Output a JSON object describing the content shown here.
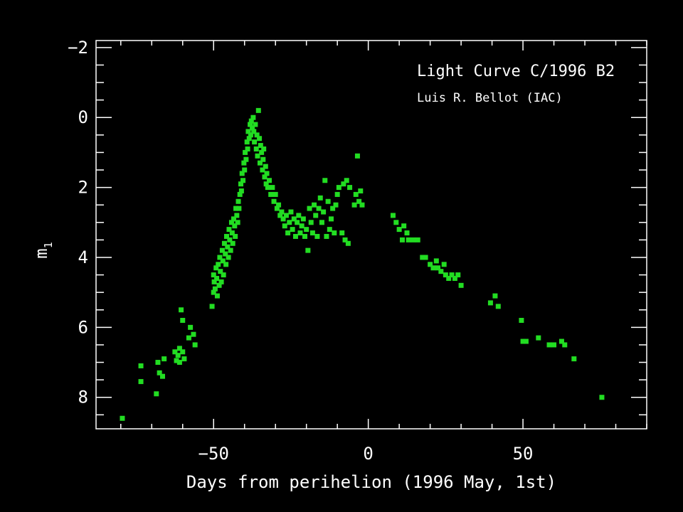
{
  "chart_data": {
    "type": "scatter",
    "title": "Light Curve C/1996 B2",
    "subtitle": "Luis R. Bellot (IAC)",
    "xlabel": "Days from perihelion (1996 May, 1st)",
    "ylabel": "m",
    "ylabel_subscript": "1",
    "xlim": [
      -88,
      90
    ],
    "ylim": [
      -2.2,
      8.9
    ],
    "y_inverted": true,
    "x_ticks": [
      -50,
      0,
      50
    ],
    "x_tick_labels": [
      "−50",
      "0",
      "50"
    ],
    "y_ticks": [
      -2,
      0,
      2,
      4,
      6,
      8
    ],
    "y_tick_labels": [
      "−2",
      "0",
      "2",
      "4",
      "6",
      "8"
    ],
    "x_minor_step": 10,
    "y_minor_step": 0.5,
    "grid": false,
    "background_color": "#000000",
    "axis_color": "#ffffff",
    "point_color": "#22dd22",
    "series": [
      {
        "points": [
          [
            -79.5,
            8.6
          ],
          [
            -73.5,
            7.1
          ],
          [
            -73.5,
            7.55
          ],
          [
            -68.5,
            7.9
          ],
          [
            -68.0,
            7.0
          ],
          [
            -67.5,
            7.3
          ],
          [
            -66.5,
            7.4
          ],
          [
            -66.0,
            6.9
          ],
          [
            -62.5,
            6.7
          ],
          [
            -62.0,
            6.95
          ],
          [
            -61.5,
            6.8
          ],
          [
            -61.0,
            7.0
          ],
          [
            -61.0,
            6.6
          ],
          [
            -60.5,
            5.5
          ],
          [
            -60.0,
            6.7
          ],
          [
            -60.0,
            5.8
          ],
          [
            -59.5,
            6.9
          ],
          [
            -58.0,
            6.3
          ],
          [
            -57.5,
            6.0
          ],
          [
            -56.5,
            6.2
          ],
          [
            -56.0,
            6.5
          ],
          [
            -50.5,
            5.4
          ],
          [
            -50.0,
            5.0
          ],
          [
            -50.0,
            4.5
          ],
          [
            -49.8,
            4.7
          ],
          [
            -49.5,
            4.9
          ],
          [
            -49.2,
            4.3
          ],
          [
            -49.0,
            4.6
          ],
          [
            -48.8,
            5.1
          ],
          [
            -48.5,
            4.2
          ],
          [
            -48.2,
            4.8
          ],
          [
            -48.0,
            4.0
          ],
          [
            -47.8,
            4.4
          ],
          [
            -47.5,
            4.7
          ],
          [
            -47.2,
            3.8
          ],
          [
            -47.0,
            4.1
          ],
          [
            -46.8,
            4.5
          ],
          [
            -46.5,
            3.6
          ],
          [
            -46.2,
            3.9
          ],
          [
            -46.0,
            4.2
          ],
          [
            -45.8,
            3.4
          ],
          [
            -45.5,
            3.7
          ],
          [
            -45.2,
            4.0
          ],
          [
            -45.0,
            3.2
          ],
          [
            -44.8,
            3.5
          ],
          [
            -44.5,
            3.8
          ],
          [
            -44.2,
            3.0
          ],
          [
            -44.0,
            3.3
          ],
          [
            -43.8,
            3.6
          ],
          [
            -43.5,
            2.9
          ],
          [
            -43.2,
            3.1
          ],
          [
            -43.0,
            3.4
          ],
          [
            -42.8,
            2.6
          ],
          [
            -42.5,
            2.8
          ],
          [
            -42.2,
            3.0
          ],
          [
            -42.0,
            2.4
          ],
          [
            -41.8,
            2.6
          ],
          [
            -41.5,
            2.2
          ],
          [
            -41.2,
            1.9
          ],
          [
            -41.0,
            2.1
          ],
          [
            -40.8,
            1.6
          ],
          [
            -40.5,
            1.8
          ],
          [
            -40.2,
            1.3
          ],
          [
            -40.0,
            1.5
          ],
          [
            -39.8,
            1.0
          ],
          [
            -39.5,
            1.2
          ],
          [
            -39.2,
            0.7
          ],
          [
            -39.0,
            0.9
          ],
          [
            -38.8,
            0.4
          ],
          [
            -38.5,
            0.6
          ],
          [
            -38.2,
            0.2
          ],
          [
            -38.0,
            0.5
          ],
          [
            -37.8,
            0.1
          ],
          [
            -37.5,
            0.3
          ],
          [
            -37.2,
            0.0
          ],
          [
            -37.0,
            0.4
          ],
          [
            -36.8,
            0.7
          ],
          [
            -36.5,
            0.2
          ],
          [
            -36.2,
            0.9
          ],
          [
            -36.0,
            0.5
          ],
          [
            -35.8,
            1.1
          ],
          [
            -35.5,
            -0.2
          ],
          [
            -35.2,
            0.6
          ],
          [
            -35.0,
            1.3
          ],
          [
            -34.8,
            0.8
          ],
          [
            -34.5,
            1.0
          ],
          [
            -34.2,
            1.5
          ],
          [
            -34.0,
            1.2
          ],
          [
            -33.8,
            0.9
          ],
          [
            -33.5,
            1.7
          ],
          [
            -33.2,
            1.4
          ],
          [
            -33.0,
            1.9
          ],
          [
            -32.8,
            1.6
          ],
          [
            -32.5,
            2.0
          ],
          [
            -32.0,
            1.8
          ],
          [
            -31.5,
            2.2
          ],
          [
            -31.0,
            2.0
          ],
          [
            -30.5,
            2.4
          ],
          [
            -30.0,
            2.2
          ],
          [
            -29.5,
            2.6
          ],
          [
            -29.0,
            2.5
          ],
          [
            -28.5,
            2.8
          ],
          [
            -28.0,
            2.7
          ],
          [
            -27.5,
            2.9
          ],
          [
            -27.0,
            3.1
          ],
          [
            -26.5,
            2.8
          ],
          [
            -26.0,
            3.3
          ],
          [
            -25.5,
            3.0
          ],
          [
            -25.0,
            2.7
          ],
          [
            -24.5,
            3.2
          ],
          [
            -24.0,
            2.9
          ],
          [
            -23.5,
            3.4
          ],
          [
            -23.0,
            3.0
          ],
          [
            -22.5,
            2.8
          ],
          [
            -22.0,
            3.3
          ],
          [
            -21.5,
            3.1
          ],
          [
            -21.0,
            2.9
          ],
          [
            -20.5,
            3.4
          ],
          [
            -20.0,
            3.2
          ],
          [
            -19.5,
            3.8
          ],
          [
            -19.0,
            2.6
          ],
          [
            -18.5,
            3.0
          ],
          [
            -18.0,
            3.3
          ],
          [
            -17.5,
            2.5
          ],
          [
            -17.0,
            2.8
          ],
          [
            -16.5,
            3.4
          ],
          [
            -16.0,
            2.6
          ],
          [
            -15.5,
            2.3
          ],
          [
            -15.0,
            3.0
          ],
          [
            -14.5,
            2.7
          ],
          [
            -14.0,
            1.8
          ],
          [
            -13.5,
            3.4
          ],
          [
            -13.0,
            2.4
          ],
          [
            -12.5,
            3.2
          ],
          [
            -12.0,
            2.9
          ],
          [
            -11.5,
            2.6
          ],
          [
            -11.0,
            3.3
          ],
          [
            -10.5,
            2.5
          ],
          [
            -10.0,
            2.2
          ],
          [
            -9.5,
            2.0
          ],
          [
            -8.5,
            3.3
          ],
          [
            -8.0,
            1.9
          ],
          [
            -7.5,
            3.5
          ],
          [
            -7.0,
            1.8
          ],
          [
            -6.5,
            3.6
          ],
          [
            -6.0,
            2.0
          ],
          [
            -4.5,
            2.5
          ],
          [
            -4.0,
            2.2
          ],
          [
            -3.5,
            1.1
          ],
          [
            -3.0,
            2.4
          ],
          [
            -2.5,
            2.1
          ],
          [
            -2.0,
            2.5
          ],
          [
            8.0,
            2.8
          ],
          [
            9.0,
            3.0
          ],
          [
            10.0,
            3.2
          ],
          [
            11.0,
            3.5
          ],
          [
            11.5,
            3.1
          ],
          [
            12.5,
            3.3
          ],
          [
            13.0,
            3.5
          ],
          [
            14.5,
            3.5
          ],
          [
            16.0,
            3.5
          ],
          [
            17.5,
            4.0
          ],
          [
            18.5,
            4.0
          ],
          [
            20.0,
            4.2
          ],
          [
            21.0,
            4.3
          ],
          [
            22.0,
            4.1
          ],
          [
            22.5,
            4.3
          ],
          [
            23.5,
            4.4
          ],
          [
            24.5,
            4.2
          ],
          [
            25.0,
            4.5
          ],
          [
            26.0,
            4.6
          ],
          [
            27.0,
            4.5
          ],
          [
            28.0,
            4.6
          ],
          [
            29.0,
            4.5
          ],
          [
            30.0,
            4.8
          ],
          [
            39.5,
            5.3
          ],
          [
            41.0,
            5.1
          ],
          [
            42.0,
            5.4
          ],
          [
            49.5,
            5.8
          ],
          [
            50.0,
            6.4
          ],
          [
            51.0,
            6.4
          ],
          [
            55.0,
            6.3
          ],
          [
            58.5,
            6.5
          ],
          [
            60.0,
            6.5
          ],
          [
            62.5,
            6.4
          ],
          [
            63.5,
            6.5
          ],
          [
            66.5,
            6.9
          ],
          [
            75.5,
            8.0
          ]
        ]
      }
    ]
  }
}
